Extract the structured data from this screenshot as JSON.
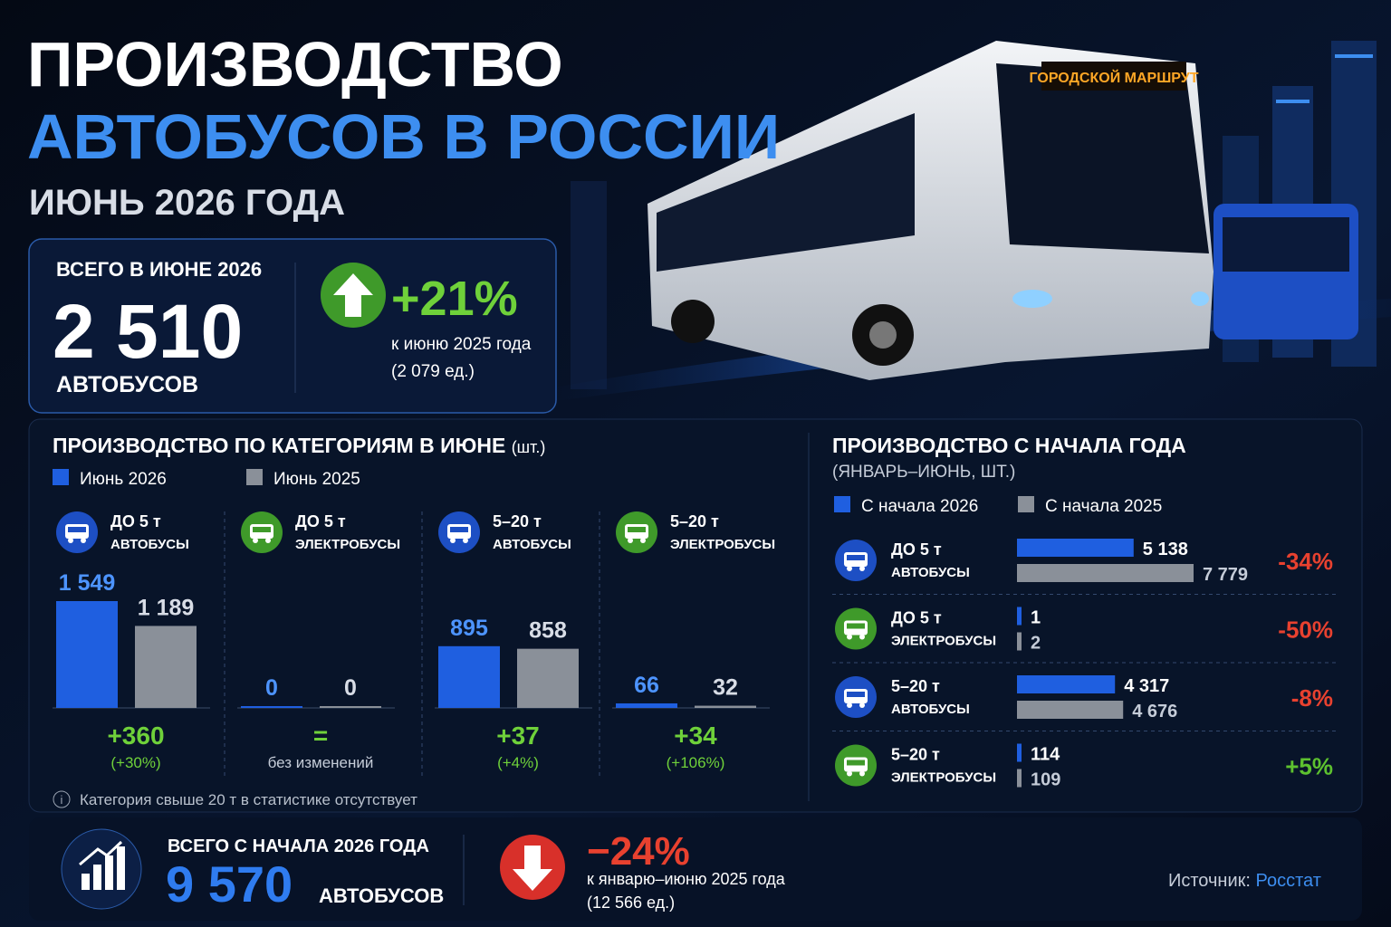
{
  "header": {
    "title_line1": "ПРОИЗВОДСТВО",
    "title_line2": "АВТОБУСОВ В РОССИИ",
    "subtitle": "ИЮНЬ 2026 ГОДА",
    "bus_sign": "ГОРОДСКОЙ МАРШРУТ"
  },
  "kpi": {
    "label": "ВСЕГО В ИЮНЕ 2026",
    "value": "2 510",
    "unit": "АВТОБУСОВ",
    "change": "+21%",
    "note": "к июню 2025 года",
    "previous": "(2 079 ед.)"
  },
  "chart_data": [
    {
      "type": "bar",
      "title": "ПРОИЗВОДСТВО ПО КАТЕГОРИЯМ В ИЮНЕ",
      "unit": "(шт.)",
      "categories": [
        "ДО 5 т",
        "ДО 5 т",
        "5–20 т",
        "5–20 т"
      ],
      "subcategories": [
        "АВТОБУСЫ",
        "ЭЛЕКТРОБУСЫ",
        "АВТОБУСЫ",
        "ЭЛЕКТРОБУСЫ"
      ],
      "series": [
        {
          "name": "Июнь 2026",
          "color": "#1f5fe0",
          "values": [
            1549,
            0,
            895,
            66
          ],
          "value_labels": [
            "1 549",
            "0",
            "895",
            "66"
          ]
        },
        {
          "name": "Июнь 2025",
          "color": "#8a9099",
          "values": [
            1189,
            0,
            858,
            32
          ],
          "value_labels": [
            "1 189",
            "0",
            "858",
            "32"
          ]
        }
      ],
      "changes": [
        "+360",
        "=",
        "+37",
        "+34"
      ],
      "change_notes": [
        "(+30%)",
        "без изменений",
        "(+4%)",
        "(+106%)"
      ],
      "footnote": "Категория свыше 20 т в статистике отсутствует"
    },
    {
      "type": "hbar",
      "title": "ПРОИЗВОДСТВО С НАЧАЛА ГОДА",
      "subtitle": "(ЯНВАРЬ–ИЮНЬ, ШТ.)",
      "categories": [
        "ДО 5 т",
        "ДО 5 т",
        "5–20 т",
        "5–20 т"
      ],
      "subcategories": [
        "АВТОБУСЫ",
        "ЭЛЕКТРОБУСЫ",
        "АВТОБУСЫ",
        "ЭЛЕКТРОБУСЫ"
      ],
      "series": [
        {
          "name": "С начала 2026",
          "color": "#1f5fe0",
          "values": [
            5138,
            1,
            4317,
            114
          ],
          "value_labels": [
            "5 138",
            "1",
            "4 317",
            "114"
          ]
        },
        {
          "name": "С начала 2025",
          "color": "#8a9099",
          "values": [
            7779,
            2,
            4676,
            109
          ],
          "value_labels": [
            "7 779",
            "2",
            "4 676",
            "109"
          ]
        }
      ],
      "changes": [
        "-34%",
        "-50%",
        "-8%",
        "+5%"
      ],
      "change_colors": [
        "#e8412f",
        "#e8412f",
        "#e8412f",
        "#5dc12f"
      ]
    }
  ],
  "footer": {
    "label": "ВСЕГО С НАЧАЛА 2026 ГОДА",
    "value": "9 570",
    "unit": "АВТОБУСОВ",
    "change": "−24%",
    "note": "к январю–июню 2025 года",
    "previous": "(12 566 ед.)",
    "source_label": "Источник:",
    "source": "Росстат"
  }
}
